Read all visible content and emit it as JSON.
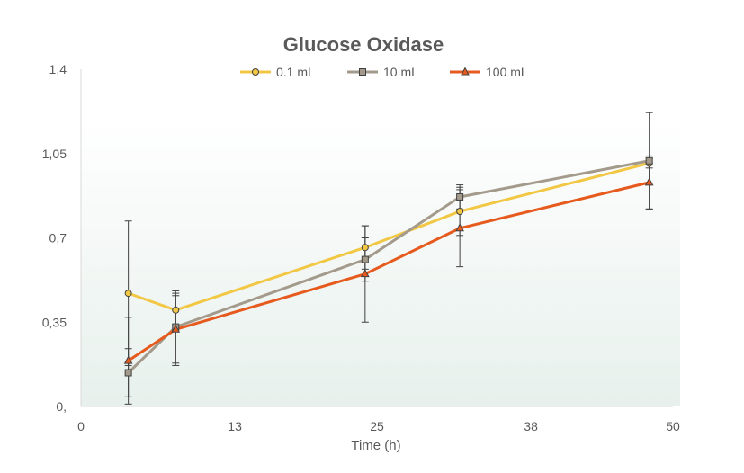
{
  "chart_data": {
    "type": "line",
    "title": "Glucose Oxidase",
    "xlabel": "Time (h)",
    "ylabel": "",
    "xlim": [
      0,
      50
    ],
    "ylim": [
      0,
      1.4
    ],
    "x_ticks": [
      0,
      13,
      25,
      38,
      50
    ],
    "x_tick_labels": [
      "0",
      "13",
      "25",
      "38",
      "50"
    ],
    "y_ticks": [
      0,
      0.35,
      0.7,
      1.05,
      1.4
    ],
    "y_tick_labels": [
      "0,",
      "0,35",
      "0,7",
      "1,05",
      "1,4"
    ],
    "grid": false,
    "legend_position": "top",
    "series": [
      {
        "name": "0.1 mL",
        "color": "#F2C744",
        "marker": "circle",
        "x": [
          4,
          8,
          24,
          32,
          48
        ],
        "y": [
          0.47,
          0.4,
          0.66,
          0.81,
          1.01
        ],
        "err": [
          0.3,
          0.06,
          0.09,
          0.1,
          0.02
        ]
      },
      {
        "name": "10 mL",
        "color": "#A39A8C",
        "marker": "square",
        "x": [
          4,
          8,
          24,
          32,
          48
        ],
        "y": [
          0.14,
          0.33,
          0.61,
          0.87,
          1.02
        ],
        "err": [
          0.1,
          0.15,
          0.09,
          0.05,
          0.2
        ]
      },
      {
        "name": "100 mL",
        "color": "#E65A1E",
        "marker": "triangle",
        "x": [
          4,
          8,
          24,
          32,
          48
        ],
        "y": [
          0.19,
          0.32,
          0.55,
          0.74,
          0.93
        ],
        "err": [
          0.18,
          0.15,
          0.2,
          0.16,
          0.11
        ]
      }
    ]
  }
}
